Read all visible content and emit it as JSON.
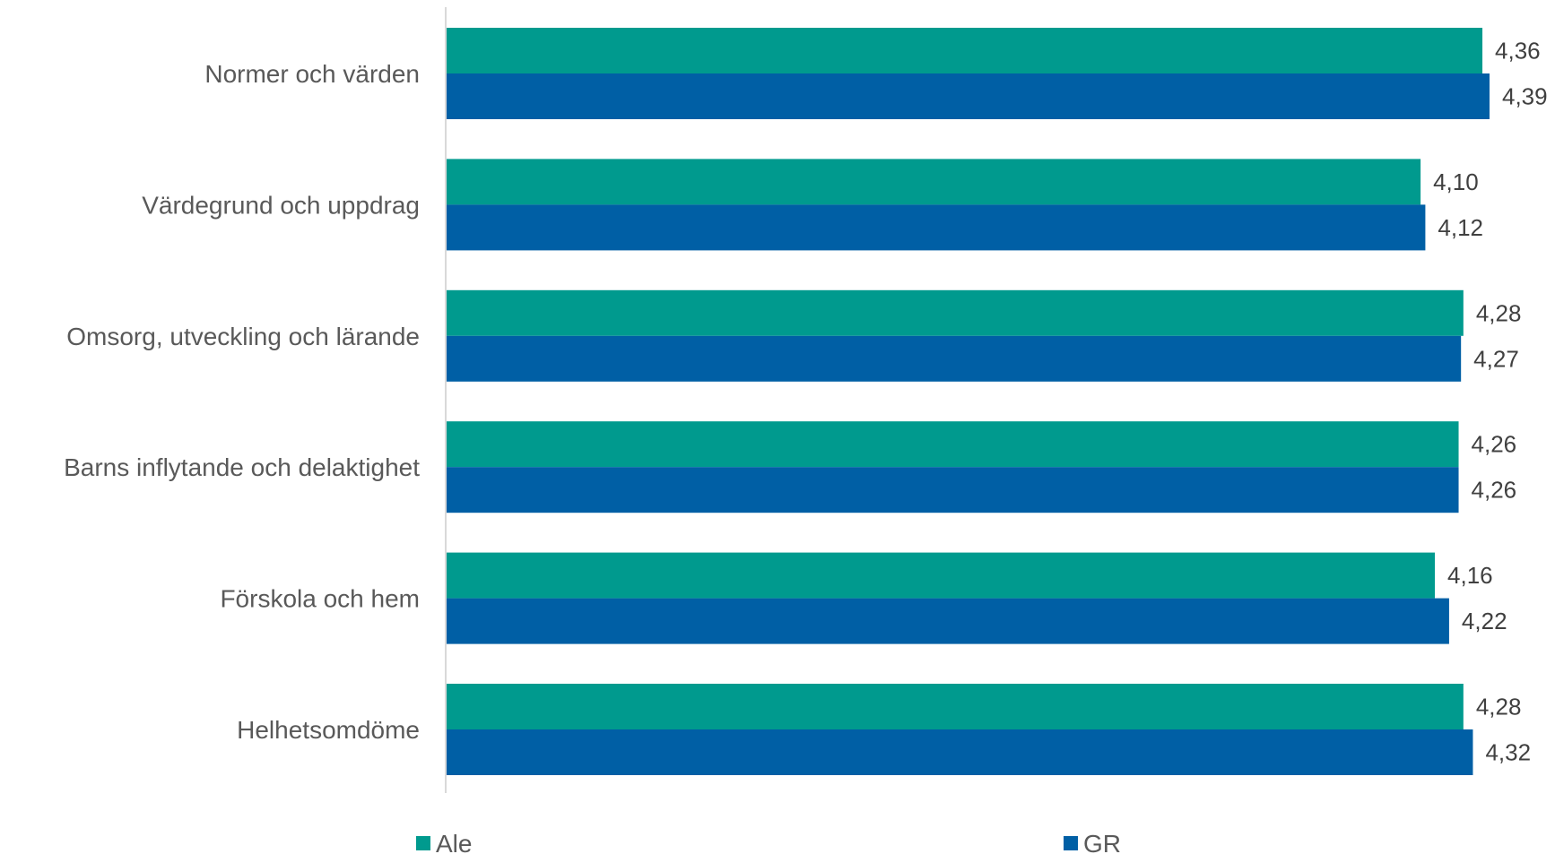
{
  "chart_data": {
    "type": "bar",
    "orientation": "horizontal",
    "categories": [
      "Normer och värden",
      "Värdegrund och uppdrag",
      "Omsorg, utveckling och lärande",
      "Barns inflytande och delaktighet",
      "Förskola och hem",
      "Helhetsomdöme"
    ],
    "series": [
      {
        "name": "Ale",
        "color": "#009A8E",
        "values": [
          4.36,
          4.1,
          4.28,
          4.26,
          4.16,
          4.28
        ],
        "labels": [
          "4,36",
          "4,10",
          "4,28",
          "4,26",
          "4,16",
          "4,28"
        ]
      },
      {
        "name": "GR",
        "color": "#005FA5",
        "values": [
          4.39,
          4.12,
          4.27,
          4.26,
          4.22,
          4.32
        ],
        "labels": [
          "4,39",
          "4,12",
          "4,27",
          "4,26",
          "4,22",
          "4,32"
        ]
      }
    ],
    "xlim": [
      0,
      4.39
    ],
    "grid": false,
    "legend_position": "bottom",
    "title": "",
    "xlabel": "",
    "ylabel": ""
  }
}
